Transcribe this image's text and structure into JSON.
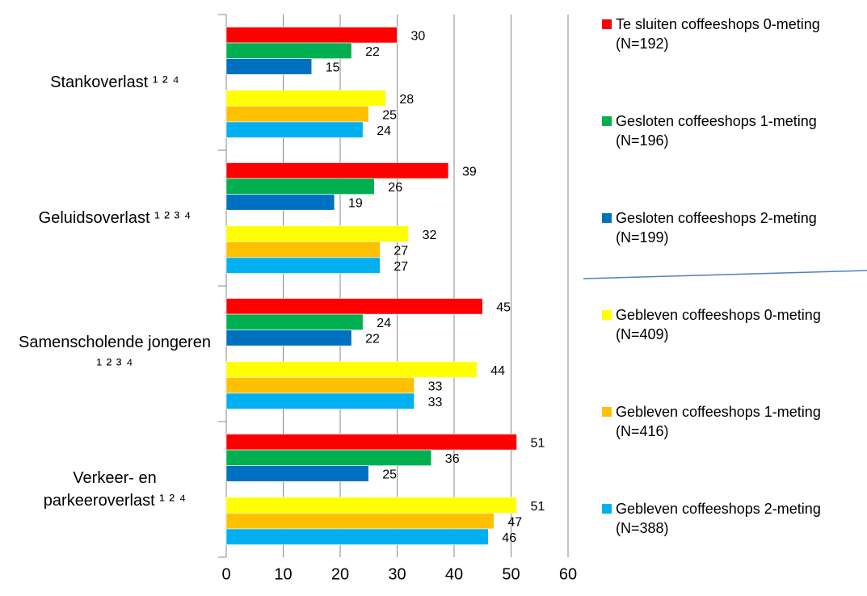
{
  "chart_data": {
    "type": "hbar",
    "categories": [
      "Stankoverlast ¹ ² ⁴",
      "Geluidsoverlast ¹ ² ³ ⁴",
      "Samenscholende jongeren ¹ ² ³ ⁴",
      "Verkeer- en parkeeroverlast ¹ ² ⁴"
    ],
    "series": [
      {
        "name": "Te sluiten coffeeshops 0-meting (N=192)",
        "color": "#ff0000",
        "values": [
          30,
          39,
          45,
          51
        ]
      },
      {
        "name": "Gesloten coffeeshops 1-meting (N=196)",
        "color": "#00b050",
        "values": [
          22,
          26,
          24,
          36
        ]
      },
      {
        "name": "Gesloten coffeeshops 2-meting (N=199)",
        "color": "#0070c0",
        "values": [
          15,
          19,
          22,
          25
        ]
      },
      {
        "name": "Gebleven coffeeshops 0-meting (N=409)",
        "color": "#ffff00",
        "values": [
          28,
          32,
          44,
          51
        ]
      },
      {
        "name": "Gebleven coffeeshops 1-meting (N=416)",
        "color": "#ffc000",
        "values": [
          25,
          27,
          33,
          47
        ]
      },
      {
        "name": "Gebleven coffeeshops 2-meting (N=388)",
        "color": "#00b0f0",
        "values": [
          24,
          27,
          33,
          46
        ]
      }
    ],
    "xlim": [
      0,
      60
    ],
    "xticks": [
      0,
      10,
      20,
      30,
      40,
      50,
      60
    ],
    "grid": true,
    "legend": "right"
  }
}
